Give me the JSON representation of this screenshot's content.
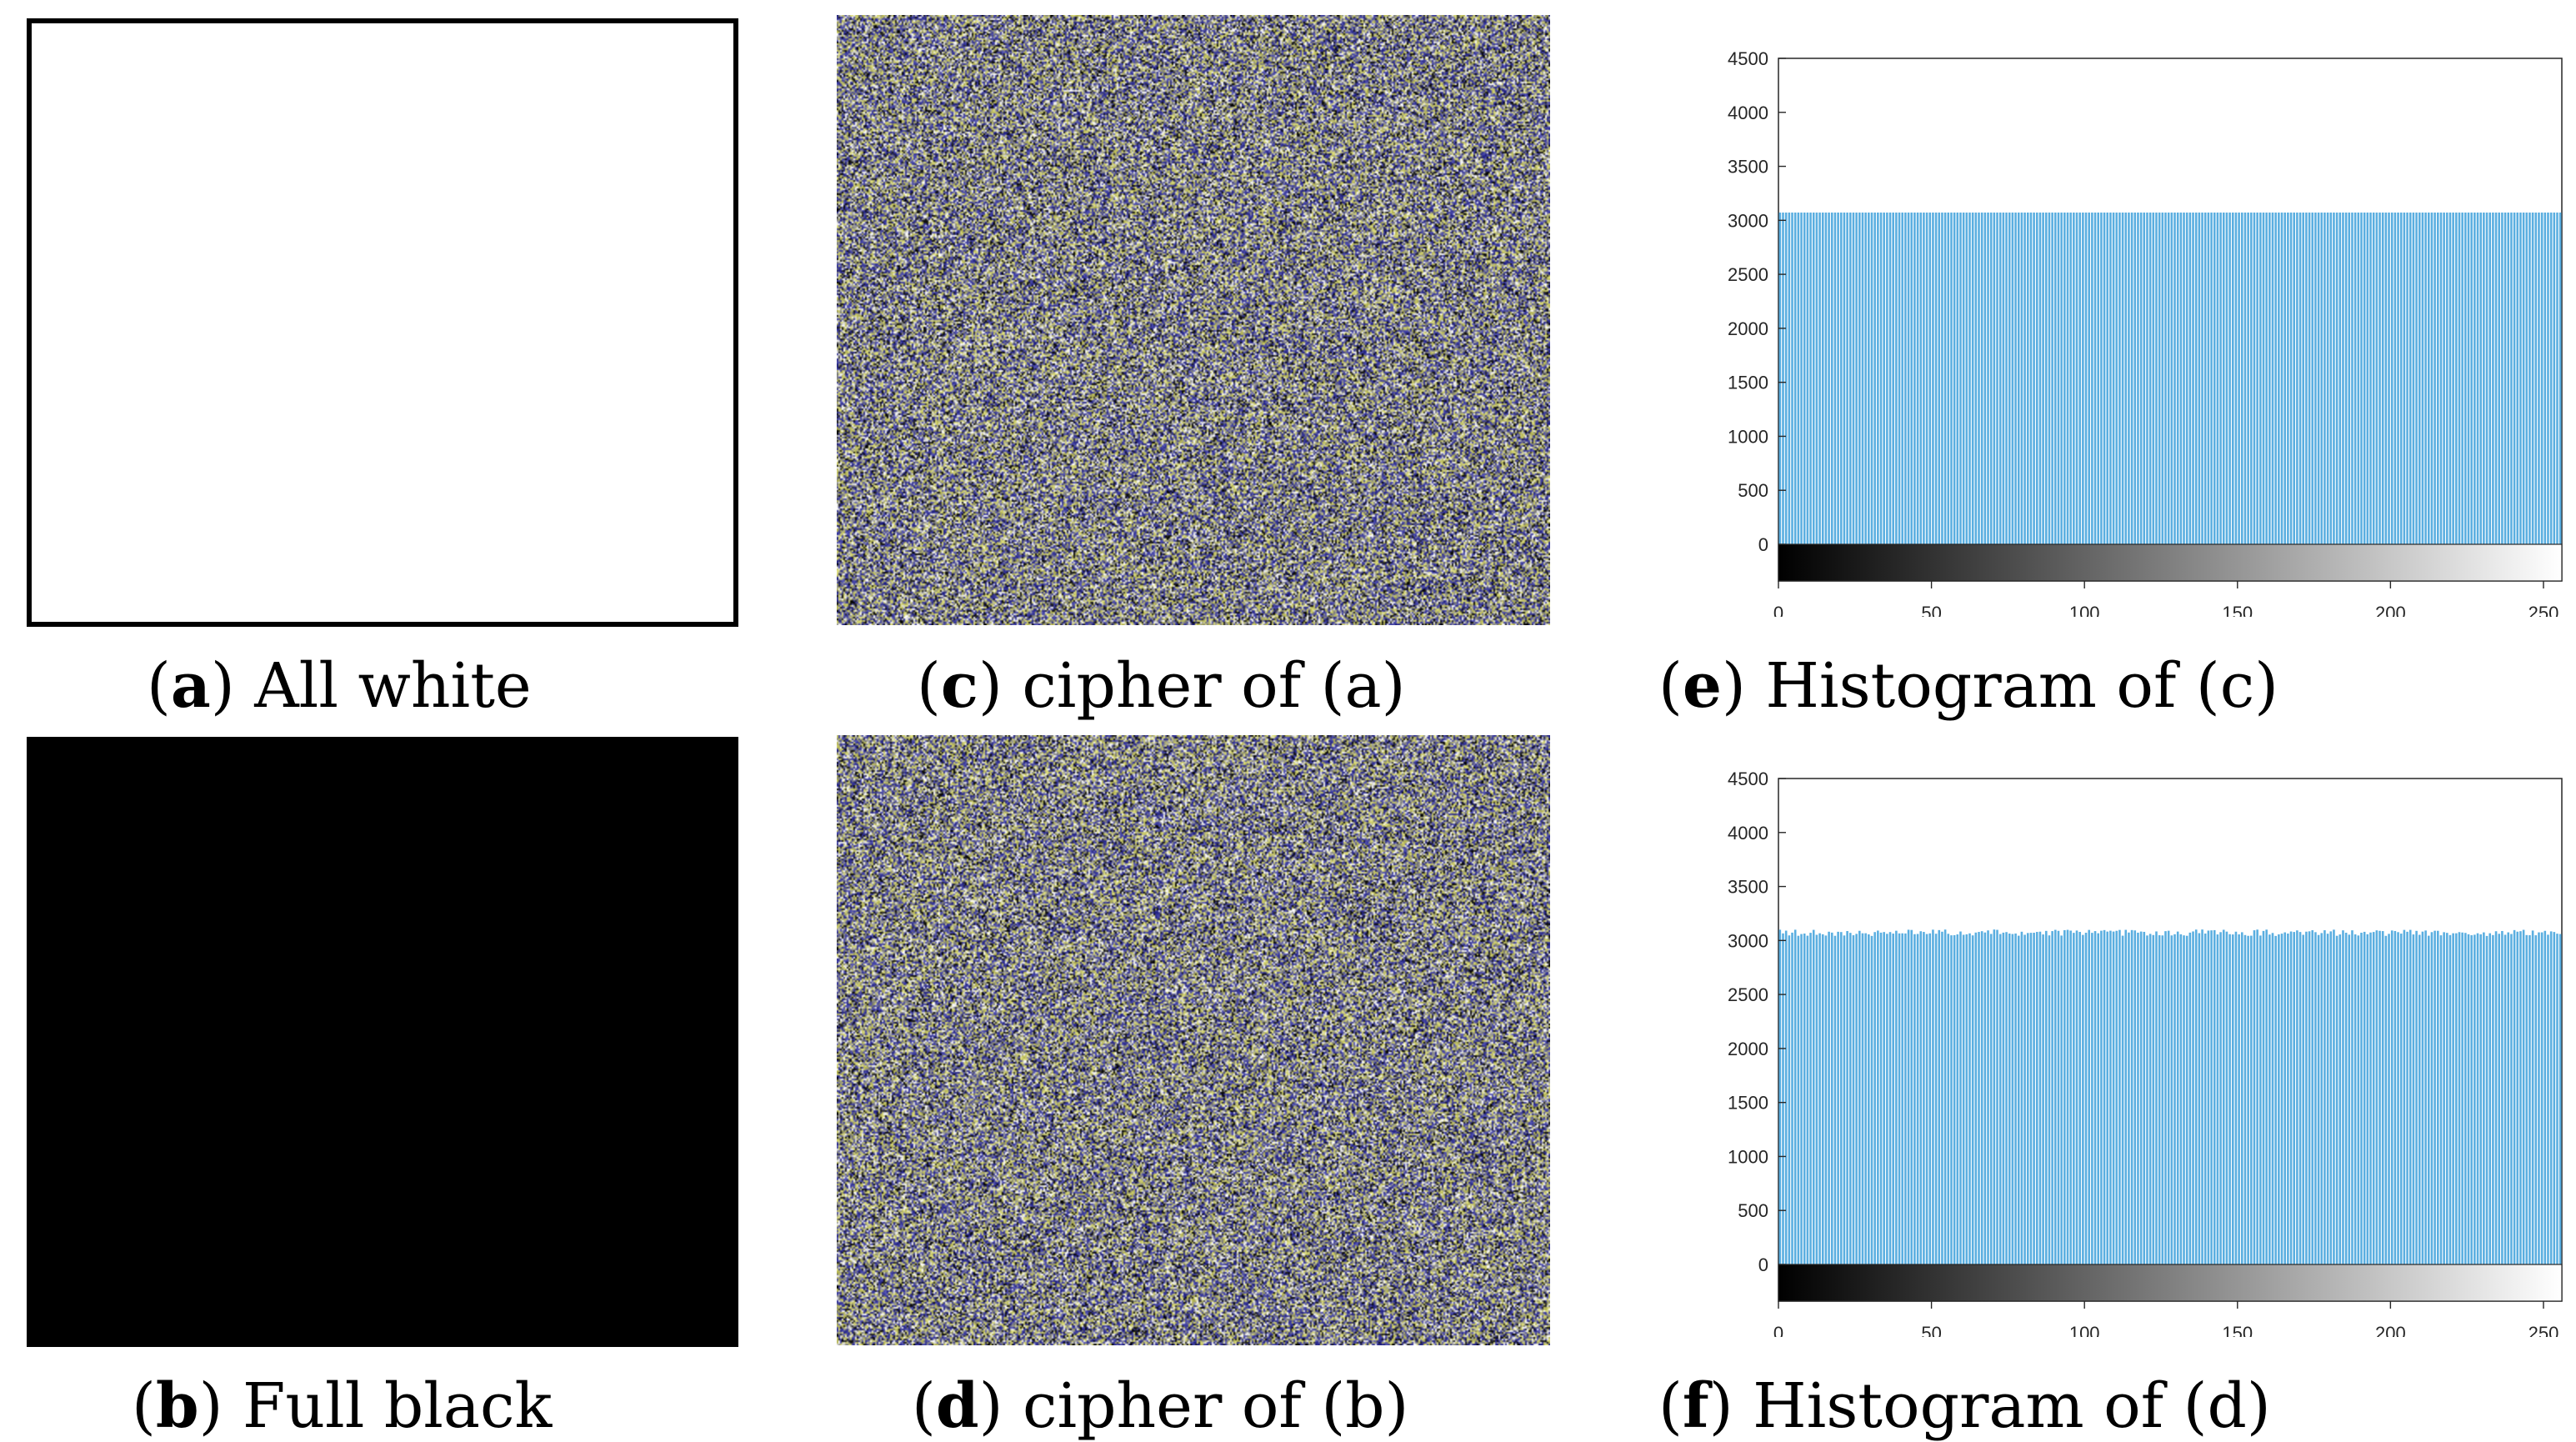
{
  "captions": {
    "a": {
      "letter": "a",
      "text": " All white"
    },
    "b": {
      "letter": "b",
      "text": " Full black"
    },
    "c": {
      "letter": "c",
      "text": " cipher of (a)"
    },
    "d": {
      "letter": "d",
      "text": " cipher of (b)"
    },
    "e": {
      "letter": "e",
      "text": " Histogram of (c)"
    },
    "f": {
      "letter": "f",
      "text": " Histogram of (d)"
    }
  },
  "colors": {
    "bar": "#5aaee0",
    "noise_blue": "#3a3a9a",
    "noise_yellow": "#c8c86a",
    "noise_gray": "#8a8a8a"
  },
  "chart_data": [
    {
      "id": "e",
      "type": "bar",
      "title": "",
      "xlabel": "",
      "ylabel": "",
      "xlim": [
        0,
        255
      ],
      "ylim": [
        0,
        4500
      ],
      "x_ticks": [
        0,
        50,
        100,
        150,
        200,
        250
      ],
      "y_ticks": [
        0,
        500,
        1000,
        1500,
        2000,
        2500,
        3000,
        3500,
        4000,
        4500
      ],
      "bins": 256,
      "value_approx": 3072,
      "jitter": 0,
      "colorbar": "grayscale"
    },
    {
      "id": "f",
      "type": "bar",
      "title": "",
      "xlabel": "",
      "ylabel": "",
      "xlim": [
        0,
        255
      ],
      "ylim": [
        0,
        4500
      ],
      "x_ticks": [
        0,
        50,
        100,
        150,
        200,
        250
      ],
      "y_ticks": [
        0,
        500,
        1000,
        1500,
        2000,
        2500,
        3000,
        3500,
        4000,
        4500
      ],
      "bins": 256,
      "value_approx": 3072,
      "jitter": 30,
      "colorbar": "grayscale"
    }
  ]
}
